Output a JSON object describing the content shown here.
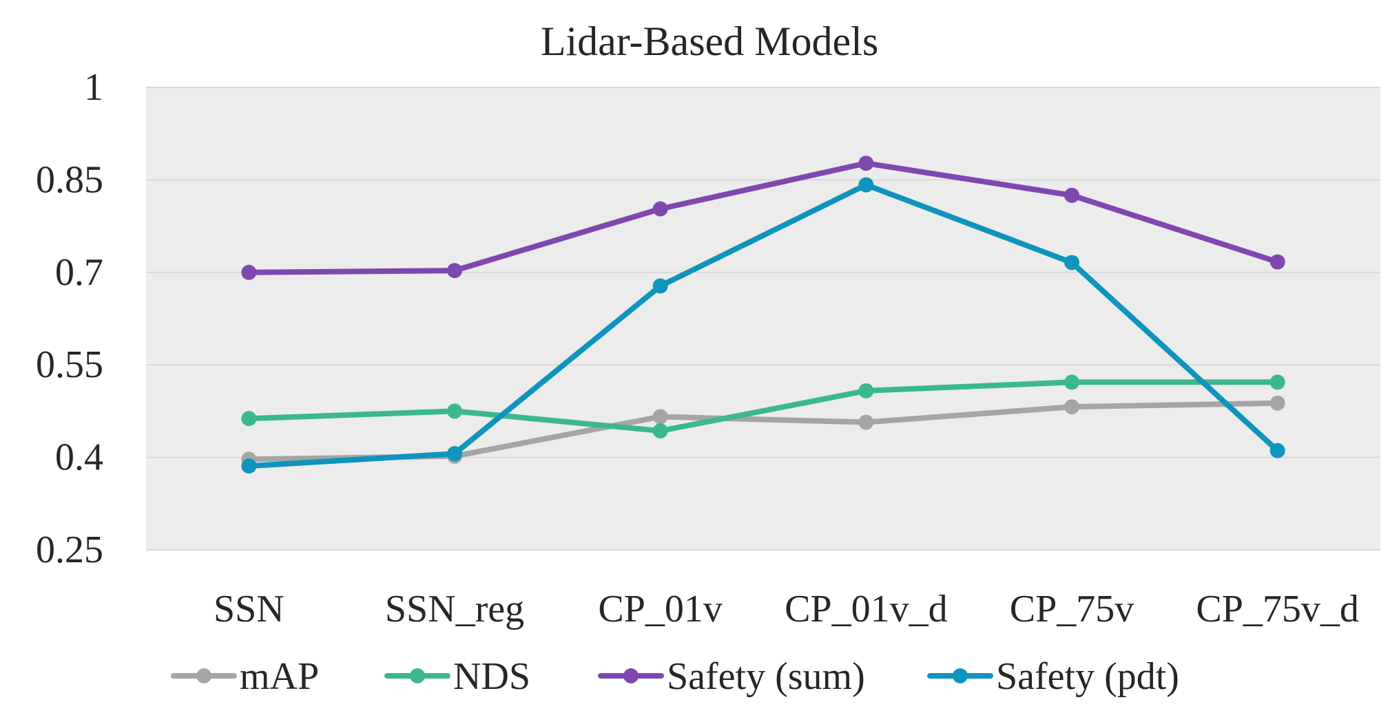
{
  "chart_data": {
    "type": "line",
    "title": "Lidar-Based Models",
    "xlabel": "",
    "ylabel": "",
    "categories": [
      "SSN",
      "SSN_reg",
      "CP_01v",
      "CP_01v_d",
      "CP_75v",
      "CP_75v_d"
    ],
    "y_ticks": [
      "0.25",
      "0.4",
      "0.55",
      "0.7",
      "0.85",
      "1"
    ],
    "ylim": [
      0.25,
      1
    ],
    "grid": true,
    "legend_position": "bottom",
    "series": [
      {
        "name": "mAP",
        "color": "#a5a5a5",
        "values": [
          0.397,
          0.402,
          0.466,
          0.457,
          0.482,
          0.488
        ]
      },
      {
        "name": "NDS",
        "color": "#3bb88e",
        "values": [
          0.463,
          0.475,
          0.443,
          0.508,
          0.522,
          0.522
        ]
      },
      {
        "name": "Safety (sum)",
        "color": "#7e48b0",
        "values": [
          0.7,
          0.703,
          0.803,
          0.877,
          0.825,
          0.717
        ]
      },
      {
        "name": "Safety (pdt)",
        "color": "#0e94bd",
        "values": [
          0.386,
          0.406,
          0.678,
          0.842,
          0.716,
          0.411
        ]
      }
    ]
  }
}
